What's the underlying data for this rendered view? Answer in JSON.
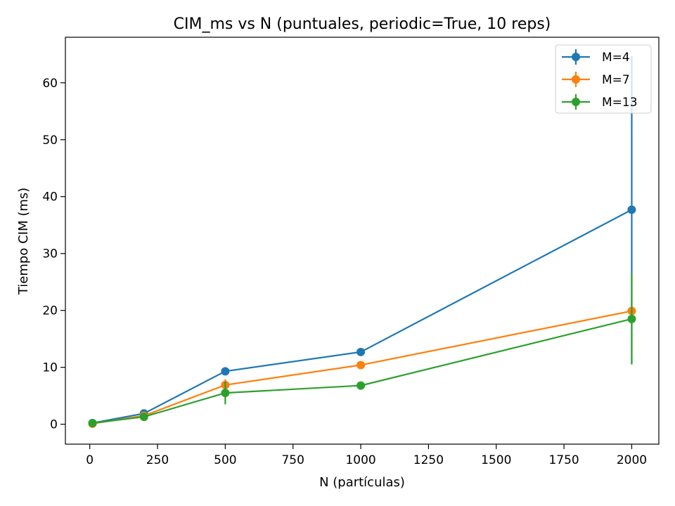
{
  "chart_data": {
    "type": "line",
    "title": "CIM_ms vs N (puntuales, periodic=True, 10 reps)",
    "xlabel": "N (partículas)",
    "ylabel": "Tiempo CIM (ms)",
    "xlim": [
      -90,
      2100
    ],
    "ylim": [
      -3.5,
      68
    ],
    "xticks": [
      0,
      250,
      500,
      750,
      1000,
      1250,
      1500,
      1750,
      2000
    ],
    "yticks": [
      0,
      10,
      20,
      30,
      40,
      50,
      60
    ],
    "grid": false,
    "legend_position": "top-right",
    "x": [
      10,
      200,
      500,
      1000,
      2000
    ],
    "series": [
      {
        "name": "M=4",
        "color": "#1f77b4",
        "values": [
          0.2,
          1.9,
          9.3,
          12.7,
          37.7
        ],
        "errors": [
          0.1,
          0.4,
          0.6,
          0.5,
          27.0
        ]
      },
      {
        "name": "M=7",
        "color": "#ff7f0e",
        "values": [
          0.1,
          1.5,
          6.9,
          10.4,
          19.9
        ],
        "errors": [
          0.1,
          0.3,
          1.0,
          0.5,
          1.0
        ]
      },
      {
        "name": "M=13",
        "color": "#2ca02c",
        "values": [
          0.2,
          1.3,
          5.5,
          6.8,
          18.5
        ],
        "errors": [
          0.1,
          0.3,
          2.0,
          0.5,
          8.0
        ]
      }
    ]
  }
}
